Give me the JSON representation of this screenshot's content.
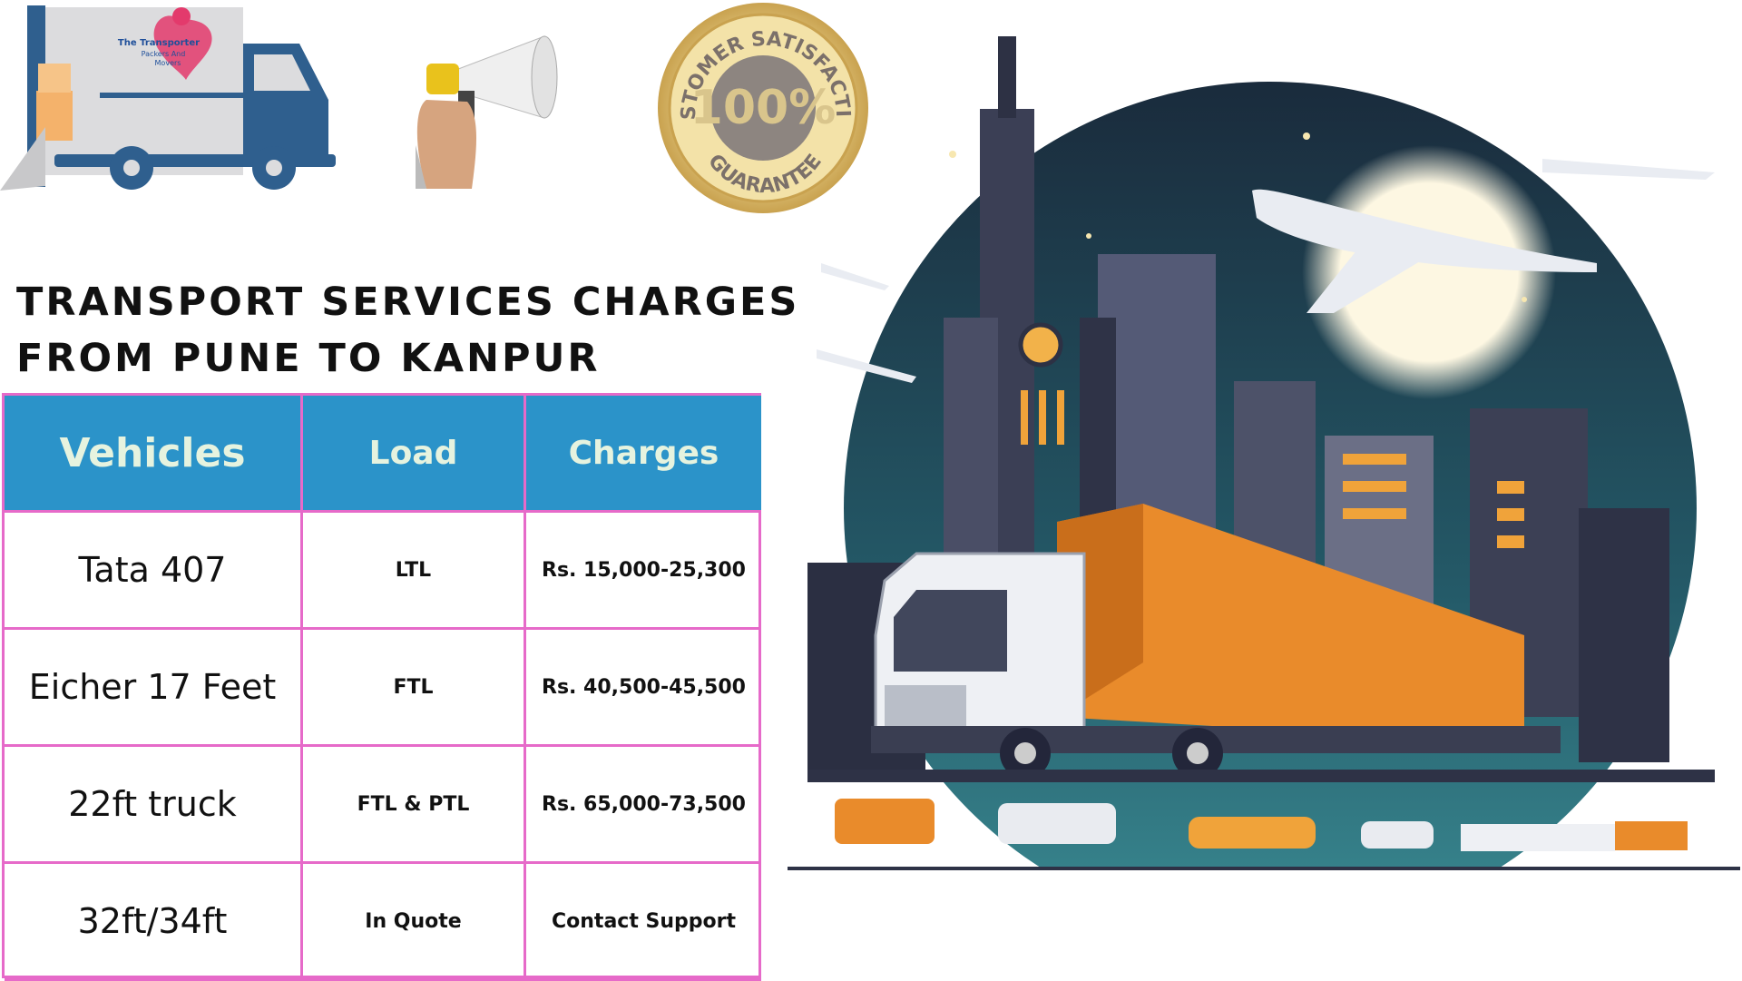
{
  "header": {
    "title_lines": [
      "TRANSPORT SERVICES CHARGES",
      "FROM PUNE TO KANPUR"
    ]
  },
  "logo": {
    "text_lines": [
      "The Transporter",
      "Packers And",
      "Movers"
    ]
  },
  "badge": {
    "top": "CUSTOMER SATISFACTION",
    "center": "100%",
    "bottom": "GUARANTEE"
  },
  "table": {
    "columns": [
      "Vehicles",
      "Load",
      "Charges"
    ],
    "rows": [
      [
        "Tata 407",
        "LTL",
        "Rs. 15,000-25,300"
      ],
      [
        "Eicher 17 Feet",
        "FTL",
        "Rs. 40,500-45,500"
      ],
      [
        "22ft truck",
        "FTL & PTL",
        "Rs. 65,000-73,500"
      ],
      [
        "32ft/34ft",
        "In Quote",
        "Contact Support"
      ]
    ]
  }
}
